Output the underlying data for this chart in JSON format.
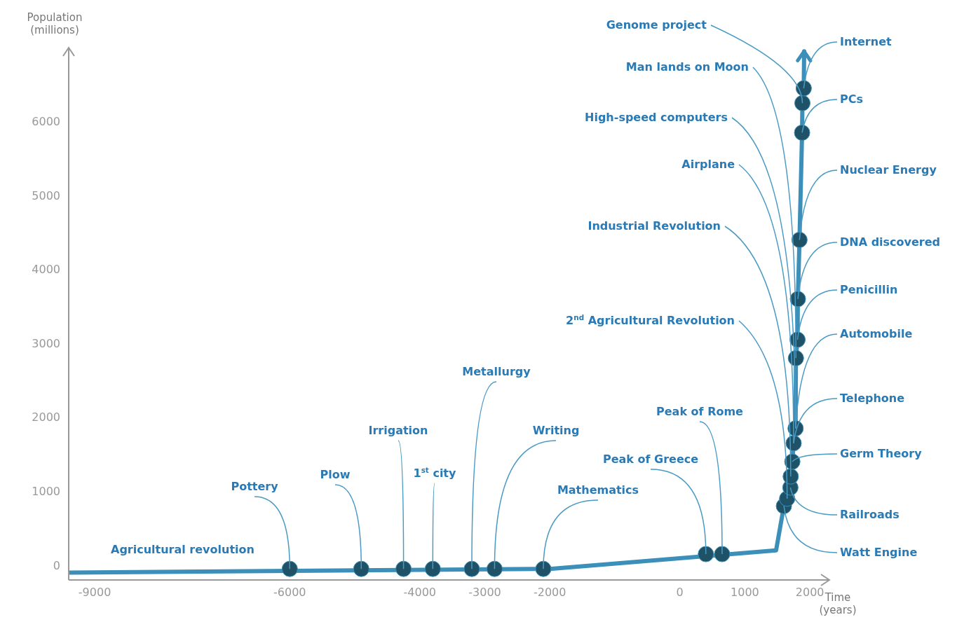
{
  "chart_data": {
    "type": "line",
    "xlabel": "Time (years)",
    "ylabel": "Population (millions)",
    "xlim": [
      -9400,
      2300
    ],
    "xticks": [
      -9000,
      -6000,
      -4000,
      -3000,
      -2000,
      0,
      1000,
      2000
    ],
    "ylim": [
      -200,
      7000
    ],
    "yticks": [
      0,
      1000,
      2000,
      3000,
      4000,
      5000,
      6000
    ],
    "series": [
      {
        "color": "#3b8fb8",
        "x": [
          -9400,
          -2000,
          1480,
          1600,
          1650,
          1700,
          1705,
          1730,
          1750,
          1780,
          1785,
          1810,
          1815,
          1840,
          1880,
          1885,
          1905,
          1912
        ],
        "values": [
          -100,
          -50,
          200,
          800,
          900,
          1050,
          1200,
          1400,
          1650,
          1850,
          2800,
          3050,
          3600,
          4400,
          5850,
          6250,
          6450,
          6950
        ]
      },
      {
        "type": "scatter",
        "color": "#1f5266",
        "marker": "circle",
        "x": [
          -6000,
          -4900,
          -4250,
          -3800,
          -3200,
          -2850,
          -2100,
          400,
          650,
          1600,
          1650,
          1700,
          1705,
          1730,
          1750,
          1780,
          1785,
          1810,
          1815,
          1840,
          1880,
          1885,
          1905
        ],
        "values": [
          -50,
          -50,
          -50,
          -50,
          -50,
          -50,
          -50,
          150,
          150,
          800,
          900,
          1050,
          1200,
          1400,
          1650,
          1850,
          2800,
          3050,
          3600,
          4400,
          5850,
          6250,
          6450
        ]
      }
    ],
    "annotations": [
      "Agricultural revolution",
      {
        "text": "Pottery",
        "x": -6000,
        "y": -50
      },
      {
        "text": "Plow",
        "x": -4900,
        "y": -50
      },
      {
        "text": "Irrigation",
        "x": -4250,
        "y": -50
      },
      {
        "text": "1$^{st}$ city",
        "x": -3800,
        "y": -50
      },
      {
        "text": "Metallurgy",
        "x": -3200,
        "y": -50
      },
      {
        "text": "Writing",
        "x": -2850,
        "y": -50
      },
      {
        "text": "Mathematics",
        "x": -2100,
        "y": -50
      },
      {
        "text": "Peak of Rome",
        "x": 650,
        "y": 150
      },
      {
        "text": "Peak of Greece",
        "x": 400,
        "y": 150
      },
      {
        "text": "2$^{nd}$ Agricultural Revolution",
        "x": 1650,
        "y": 900
      },
      {
        "text": "Industrial Revolution",
        "x": 1705,
        "y": 1200
      },
      {
        "text": "Airplane",
        "x": 1750,
        "y": 1650
      },
      {
        "text": "High-speed computers",
        "x": 1780,
        "y": 1850
      },
      {
        "text": "Man lands on Moon",
        "x": 1785,
        "y": 2800
      },
      {
        "text": "Genome project",
        "x": 1885,
        "y": 6250
      },
      {
        "text": "Internet",
        "x": 1905,
        "y": 6450
      },
      {
        "text": "PCs",
        "x": 1880,
        "y": 5850
      },
      {
        "text": "Nuclear Energy",
        "x": 1840,
        "y": 4400
      },
      {
        "text": "DNA discovered",
        "x": 1815,
        "y": 3600
      },
      {
        "text": "Penicillin",
        "x": 1810,
        "y": 3050
      },
      {
        "text": "Automobile",
        "x": 1780,
        "y": 1850
      },
      {
        "text": "Telephone",
        "x": 1750,
        "y": 1650
      },
      {
        "text": "Germ Theory",
        "x": 1730,
        "y": 1400
      },
      {
        "text": "Railroads",
        "x": 1700,
        "y": 1050
      },
      {
        "text": "Watt Engine",
        "x": 1600,
        "y": 800
      }
    ]
  }
}
